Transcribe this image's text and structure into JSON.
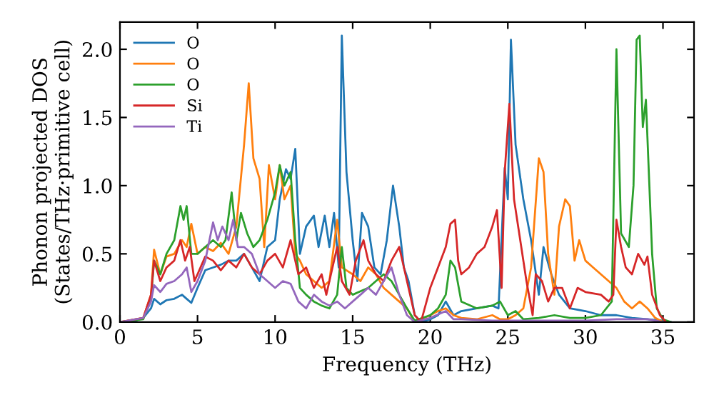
{
  "chart_data": {
    "type": "line",
    "xlabel": "Frequency (THz)",
    "ylabel": "Phonon projected DOS\n(States/THz·primitive cell)",
    "xlim": [
      0,
      37
    ],
    "ylim": [
      0,
      2.2
    ],
    "xticks": [
      0,
      5,
      10,
      15,
      20,
      25,
      30,
      35
    ],
    "yticks": [
      {
        "value": 0,
        "label": "0.0"
      },
      {
        "value": 0.5,
        "label": "0.5"
      },
      {
        "value": 1,
        "label": "1.0"
      },
      {
        "value": 1.5,
        "label": "1.5"
      },
      {
        "value": 2,
        "label": "2.0"
      }
    ],
    "grid": false,
    "legend": "top left",
    "marker": "none",
    "line_style": "solid",
    "series": [
      {
        "name": "O",
        "color": "#1f77b4",
        "x": [
          0,
          1,
          1.5,
          2,
          2.2,
          2.6,
          3,
          3.5,
          4,
          4.3,
          4.6,
          5,
          5.5,
          6,
          6.5,
          7,
          7.5,
          8,
          8.5,
          9,
          9.5,
          10,
          10.3,
          10.7,
          11,
          11.3,
          11.6,
          12,
          12.5,
          12.8,
          13.2,
          13.5,
          13.8,
          14.1,
          14.3,
          14.6,
          15,
          15.3,
          15.6,
          16,
          16.4,
          16.8,
          17.2,
          17.6,
          18,
          18.3,
          18.6,
          19,
          19.4,
          20,
          20.5,
          21,
          21.5,
          22,
          23,
          24,
          24.4,
          24.8,
          25,
          25.2,
          25.5,
          26,
          26.5,
          27,
          27.3,
          27.8,
          28.3,
          29,
          30,
          31,
          32,
          33,
          34,
          35,
          35.5
        ],
        "values": [
          0,
          0.01,
          0.03,
          0.1,
          0.17,
          0.13,
          0.16,
          0.17,
          0.2,
          0.17,
          0.14,
          0.25,
          0.38,
          0.4,
          0.42,
          0.45,
          0.45,
          0.5,
          0.4,
          0.3,
          0.55,
          0.6,
          0.9,
          1.12,
          1.05,
          1.27,
          0.5,
          0.7,
          0.78,
          0.55,
          0.78,
          0.55,
          0.8,
          0.4,
          2.1,
          1.1,
          0.6,
          0.3,
          0.8,
          0.7,
          0.4,
          0.35,
          0.6,
          1.0,
          0.7,
          0.4,
          0.3,
          0.05,
          0,
          0.02,
          0.05,
          0.15,
          0.05,
          0.08,
          0.1,
          0.12,
          0.1,
          1.13,
          0.9,
          2.07,
          1.3,
          0.9,
          0.6,
          0.2,
          0.55,
          0.35,
          0.2,
          0.1,
          0.08,
          0.05,
          0.05,
          0.03,
          0.02,
          0.01,
          0
        ]
      },
      {
        "name": "O",
        "color": "#ff7f0e",
        "x": [
          0,
          1.5,
          2,
          2.2,
          2.6,
          3,
          3.5,
          4,
          4.3,
          4.6,
          5,
          5.5,
          6,
          6.5,
          7,
          7.5,
          8,
          8.3,
          8.6,
          9,
          9.3,
          9.6,
          10,
          10.3,
          10.6,
          11,
          11.3,
          11.6,
          12,
          12.5,
          13,
          13.5,
          14,
          14.3,
          15,
          15.5,
          16,
          16.5,
          17,
          17.5,
          18,
          18.5,
          19,
          20,
          20.5,
          21,
          21.5,
          22,
          23,
          24,
          24.5,
          25,
          25.5,
          26,
          26.5,
          27,
          27.3,
          27.6,
          28,
          28.3,
          28.7,
          29,
          29.3,
          29.6,
          30,
          30.5,
          31,
          31.5,
          32,
          32.5,
          33,
          33.5,
          34,
          34.5,
          35
        ],
        "values": [
          0,
          0.03,
          0.2,
          0.53,
          0.35,
          0.48,
          0.5,
          0.6,
          0.55,
          0.72,
          0.5,
          0.55,
          0.52,
          0.58,
          0.5,
          0.7,
          1.3,
          1.75,
          1.2,
          1.05,
          0.55,
          1.15,
          0.9,
          1.15,
          0.9,
          1.0,
          0.5,
          0.45,
          0.35,
          0.3,
          0.25,
          0.3,
          0.75,
          0.4,
          0.35,
          0.3,
          0.4,
          0.35,
          0.25,
          0.2,
          0.15,
          0.1,
          0,
          0.05,
          0.08,
          0.1,
          0.05,
          0.03,
          0.02,
          0.05,
          0.02,
          0.02,
          0.05,
          0.1,
          0.4,
          1.2,
          1.1,
          0.5,
          0.2,
          0.7,
          0.9,
          0.85,
          0.45,
          0.6,
          0.45,
          0.4,
          0.35,
          0.3,
          0.25,
          0.15,
          0.1,
          0.15,
          0.1,
          0.03,
          0
        ]
      },
      {
        "name": "O",
        "color": "#2ca02c",
        "x": [
          0,
          1.5,
          2,
          2.2,
          2.6,
          3,
          3.5,
          3.9,
          4.1,
          4.3,
          4.6,
          5,
          5.5,
          6,
          6.5,
          6.8,
          7.2,
          7.5,
          7.8,
          8.2,
          8.6,
          9,
          9.5,
          10,
          10.3,
          10.6,
          11,
          11.3,
          11.6,
          12,
          12.5,
          13,
          13.5,
          14,
          14.3,
          14.6,
          15,
          16,
          16.5,
          17,
          17.5,
          18,
          18.5,
          19,
          20,
          20.5,
          21,
          21.3,
          21.6,
          22,
          23,
          24,
          24.5,
          25,
          25.5,
          26,
          27,
          28,
          29,
          30,
          31,
          31.7,
          32,
          32.3,
          32.8,
          33.1,
          33.3,
          33.5,
          33.7,
          33.9,
          34.3,
          34.6,
          35,
          35.5
        ],
        "values": [
          0,
          0.02,
          0.17,
          0.45,
          0.35,
          0.5,
          0.6,
          0.85,
          0.75,
          0.85,
          0.5,
          0.5,
          0.55,
          0.6,
          0.55,
          0.6,
          0.95,
          0.6,
          0.8,
          0.65,
          0.55,
          0.6,
          0.75,
          0.95,
          1.15,
          1.0,
          1.1,
          0.6,
          0.25,
          0.2,
          0.15,
          0.12,
          0.1,
          0.2,
          0.55,
          0.25,
          0.2,
          0.25,
          0.3,
          0.35,
          0.3,
          0.2,
          0.1,
          0.01,
          0.05,
          0.1,
          0.2,
          0.45,
          0.4,
          0.15,
          0.1,
          0.12,
          0.15,
          0.05,
          0.08,
          0.02,
          0.03,
          0.05,
          0.03,
          0.03,
          0.05,
          0.15,
          2.0,
          0.65,
          0.55,
          1.0,
          2.07,
          2.1,
          1.43,
          1.63,
          0.5,
          0.1,
          0.02,
          0
        ]
      },
      {
        "name": "Si",
        "color": "#d62728",
        "x": [
          0,
          1.5,
          2,
          2.2,
          2.6,
          3,
          3.5,
          3.9,
          4.2,
          4.5,
          4.8,
          5,
          5.5,
          6,
          6.5,
          7,
          7.5,
          8,
          8.5,
          9,
          9.5,
          10,
          10.5,
          11,
          11.5,
          12,
          12.5,
          13,
          13.3,
          13.6,
          14,
          14.3,
          14.8,
          15.2,
          15.7,
          16,
          16.5,
          17,
          17.5,
          18,
          18.5,
          19,
          19.4,
          20,
          20.5,
          21,
          21.3,
          21.6,
          21.8,
          22,
          22.5,
          23,
          23.5,
          24,
          24.3,
          24.6,
          24.8,
          25.1,
          25.4,
          25.8,
          26.2,
          26.6,
          26.8,
          27.2,
          27.6,
          28,
          28.5,
          29,
          29.5,
          30,
          31,
          31.5,
          31.8,
          32,
          32.3,
          32.6,
          33,
          33.4,
          33.8,
          34,
          34.3,
          34.8,
          35.2
        ],
        "values": [
          0,
          0.03,
          0.2,
          0.45,
          0.3,
          0.4,
          0.45,
          0.6,
          0.45,
          0.55,
          0.3,
          0.35,
          0.48,
          0.45,
          0.38,
          0.45,
          0.4,
          0.5,
          0.4,
          0.35,
          0.45,
          0.5,
          0.4,
          0.6,
          0.35,
          0.4,
          0.25,
          0.35,
          0.2,
          0.35,
          0.55,
          0.3,
          0.2,
          0.45,
          0.6,
          0.45,
          0.35,
          0.3,
          0.45,
          0.55,
          0.3,
          0.05,
          0,
          0.25,
          0.4,
          0.55,
          0.72,
          0.75,
          0.45,
          0.35,
          0.4,
          0.5,
          0.55,
          0.7,
          0.82,
          0.25,
          1.1,
          1.6,
          0.9,
          0.6,
          0.3,
          0.05,
          0.35,
          0.3,
          0.15,
          0.25,
          0.25,
          0.1,
          0.25,
          0.22,
          0.2,
          0.15,
          0.2,
          0.75,
          0.55,
          0.4,
          0.35,
          0.5,
          0.42,
          0.48,
          0.2,
          0.05,
          0
        ]
      },
      {
        "name": "Ti",
        "color": "#9467bd",
        "x": [
          0,
          1.5,
          2,
          2.2,
          2.6,
          3,
          3.5,
          4,
          4.3,
          4.6,
          5,
          5.5,
          6,
          6.3,
          6.6,
          7,
          7.3,
          7.6,
          8,
          8.5,
          9,
          9.5,
          10,
          10.5,
          11,
          11.5,
          12,
          12.5,
          13,
          13.5,
          14,
          14.5,
          15,
          15.5,
          16,
          16.5,
          17,
          17.5,
          18,
          18.5,
          19,
          20,
          21,
          21.5,
          22,
          24,
          26,
          28,
          30,
          32,
          34,
          35
        ],
        "values": [
          0,
          0.03,
          0.15,
          0.27,
          0.22,
          0.28,
          0.3,
          0.35,
          0.4,
          0.22,
          0.3,
          0.45,
          0.73,
          0.6,
          0.7,
          0.6,
          0.75,
          0.55,
          0.55,
          0.5,
          0.35,
          0.3,
          0.25,
          0.3,
          0.28,
          0.15,
          0.1,
          0.2,
          0.15,
          0.12,
          0.15,
          0.1,
          0.15,
          0.2,
          0.25,
          0.2,
          0.3,
          0.4,
          0.2,
          0.05,
          0,
          0.03,
          0.08,
          0.02,
          0.02,
          0.01,
          0.01,
          0.01,
          0.01,
          0.02,
          0.02,
          0
        ]
      }
    ]
  }
}
